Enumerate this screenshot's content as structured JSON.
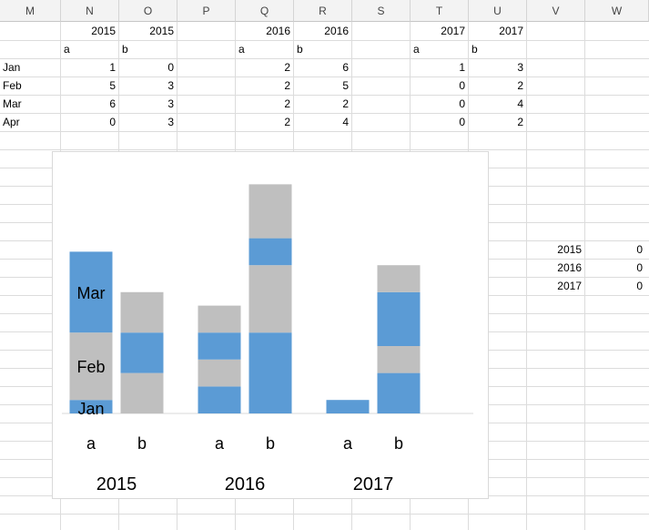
{
  "sheet": {
    "columns": [
      "M",
      "N",
      "O",
      "P",
      "Q",
      "R",
      "S",
      "T",
      "U",
      "V",
      "W"
    ],
    "header_years": {
      "N": "2015",
      "O": "2015",
      "Q": "2016",
      "R": "2016",
      "T": "2017",
      "U": "2017"
    },
    "header_series": {
      "N": "a",
      "O": "b",
      "Q": "a",
      "R": "b",
      "T": "a",
      "U": "b"
    },
    "rows": [
      {
        "label": "Jan",
        "N": "1",
        "O": "0",
        "Q": "2",
        "R": "6",
        "T": "1",
        "U": "3"
      },
      {
        "label": "Feb",
        "N": "5",
        "O": "3",
        "Q": "2",
        "R": "5",
        "T": "0",
        "U": "2"
      },
      {
        "label": "Mar",
        "N": "6",
        "O": "3",
        "Q": "2",
        "R": "2",
        "T": "0",
        "U": "4"
      },
      {
        "label": "Apr",
        "N": "0",
        "O": "3",
        "Q": "2",
        "R": "4",
        "T": "0",
        "U": "2"
      }
    ],
    "side_table": [
      {
        "year": "2015",
        "value": "0"
      },
      {
        "year": "2016",
        "value": "0"
      },
      {
        "year": "2017",
        "value": "0"
      }
    ]
  },
  "chart_data": {
    "type": "bar",
    "stacked": true,
    "groups": [
      "2015",
      "2016",
      "2017"
    ],
    "categories": [
      "a",
      "b"
    ],
    "series": [
      {
        "name": "Jan",
        "values": {
          "2015": [
            1,
            0
          ],
          "2016": [
            2,
            6
          ],
          "2017": [
            1,
            3
          ]
        }
      },
      {
        "name": "Feb",
        "values": {
          "2015": [
            5,
            3
          ],
          "2016": [
            2,
            5
          ],
          "2017": [
            0,
            2
          ]
        }
      },
      {
        "name": "Mar",
        "values": {
          "2015": [
            6,
            3
          ],
          "2016": [
            2,
            2
          ],
          "2017": [
            0,
            4
          ]
        }
      },
      {
        "name": "Apr",
        "values": {
          "2015": [
            0,
            3
          ],
          "2016": [
            2,
            4
          ],
          "2017": [
            0,
            2
          ]
        }
      }
    ],
    "segment_labels_2015a": [
      "Jan",
      "Feb",
      "Mar"
    ],
    "colors": {
      "blue": "#5b9bd5",
      "gray": "#bfbfbf"
    },
    "ylim": [
      0,
      17
    ],
    "gridlines": false,
    "legend": "none"
  }
}
